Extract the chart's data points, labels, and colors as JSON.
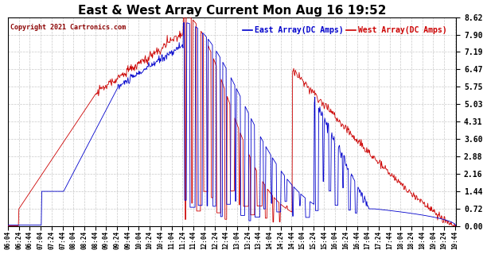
{
  "title": "East & West Array Current Mon Aug 16 19:52",
  "copyright": "Copyright 2021 Cartronics.com",
  "legend_east": "East Array(DC Amps)",
  "legend_west": "West Array(DC Amps)",
  "east_color": "#0000cc",
  "west_color": "#cc0000",
  "background_color": "#ffffff",
  "grid_color": "#bbbbbb",
  "ymin": 0.0,
  "ymax": 8.62,
  "yticks": [
    0.0,
    0.72,
    1.44,
    2.16,
    2.88,
    3.6,
    4.31,
    5.03,
    5.75,
    6.47,
    7.19,
    7.9,
    8.62
  ],
  "x_start_hour": 6,
  "x_start_min": 4,
  "x_end_hour": 19,
  "x_end_min": 46,
  "x_interval_min": 20
}
